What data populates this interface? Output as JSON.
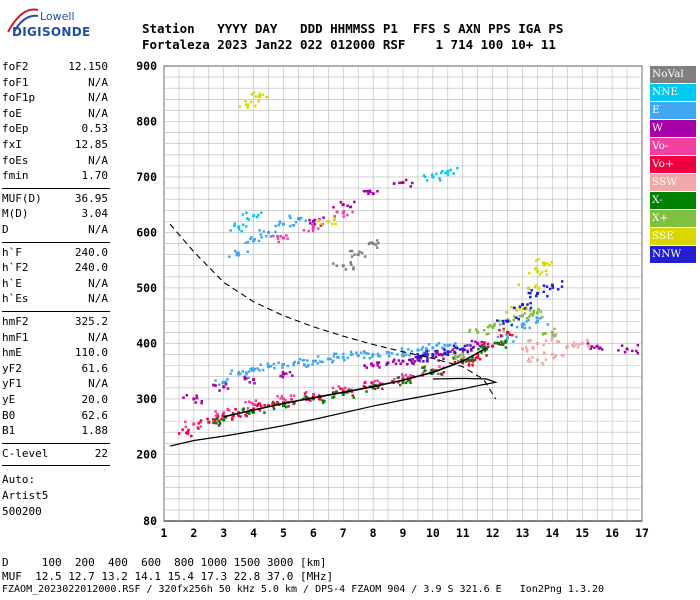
{
  "logo": {
    "line1": "Lowell",
    "line2": "DIGISONDE"
  },
  "header": {
    "line1": "Station   YYYY DAY   DDD HHMMSS P1  FFS S AXN PPS IGA PS",
    "line2": "Fortaleza 2023 Jan22 022 012000 RSF    1 714 100 10+ 11"
  },
  "params": {
    "group1": [
      {
        "k": "foF2",
        "v": "12.150"
      },
      {
        "k": "foF1",
        "v": "N/A"
      },
      {
        "k": "foF1p",
        "v": "N/A"
      },
      {
        "k": "foE",
        "v": "N/A"
      },
      {
        "k": "foEp",
        "v": "0.53"
      },
      {
        "k": "fxI",
        "v": "12.85"
      },
      {
        "k": "foEs",
        "v": "N/A"
      },
      {
        "k": "fmin",
        "v": "1.70"
      }
    ],
    "group2": [
      {
        "k": "MUF(D)",
        "v": "36.95"
      },
      {
        "k": "M(D)",
        "v": "3.04"
      },
      {
        "k": "D",
        "v": "N/A"
      }
    ],
    "group3": [
      {
        "k": "h`F",
        "v": "240.0"
      },
      {
        "k": "h`F2",
        "v": "240.0"
      },
      {
        "k": "h`E",
        "v": "N/A"
      },
      {
        "k": "h`Es",
        "v": "N/A"
      }
    ],
    "group4": [
      {
        "k": "hmF2",
        "v": "325.2"
      },
      {
        "k": "hmF1",
        "v": "N/A"
      },
      {
        "k": "hmE",
        "v": "110.0"
      },
      {
        "k": "yF2",
        "v": "61.6"
      },
      {
        "k": "yF1",
        "v": "N/A"
      },
      {
        "k": "yE",
        "v": "20.0"
      },
      {
        "k": "B0",
        "v": "62.6"
      },
      {
        "k": "B1",
        "v": "1.88"
      }
    ],
    "clevel": {
      "k": "C-level",
      "v": "22"
    },
    "auto": [
      "Auto:",
      "Artist5",
      "500200"
    ]
  },
  "legend": [
    {
      "label": "NoVal",
      "color": "#808080"
    },
    {
      "label": "NNE",
      "color": "#00c8f0"
    },
    {
      "label": "E",
      "color": "#40a8f0"
    },
    {
      "label": "W",
      "color": "#a800a8"
    },
    {
      "label": "Vo-",
      "color": "#f040a0"
    },
    {
      "label": "Vo+",
      "color": "#f00040"
    },
    {
      "label": "SSW",
      "color": "#f0a8a8"
    },
    {
      "label": "X-",
      "color": "#008000"
    },
    {
      "label": "X+",
      "color": "#80c040"
    },
    {
      "label": "SSE",
      "color": "#d8d800"
    },
    {
      "label": "NNW",
      "color": "#2020d0"
    }
  ],
  "footer": {
    "line1": "D     100  200  400  600  800 1000 1500 3000 [km]",
    "line2": "MUF  12.5 12.7 13.2 14.1 15.4 17.3 22.8 37.0 [MHz]",
    "line3": "FZAOM_2023022012000.RSF / 320fx256h 50 kHz 5.0 km / DPS-4 FZAOM 904 / 3.9 S 321.6 E   Ion2Png 1.3.20"
  },
  "chart_data": {
    "type": "scatter",
    "title": "",
    "xlabel": "",
    "ylabel": "",
    "xlim": [
      1,
      17
    ],
    "ylim": [
      80,
      900
    ],
    "x_ticks": [
      1,
      2,
      3,
      4,
      5,
      6,
      7,
      8,
      9,
      10,
      11,
      12,
      13,
      14,
      15,
      16,
      17
    ],
    "y_ticks": [
      80,
      200,
      300,
      400,
      500,
      600,
      700,
      800,
      900
    ],
    "grid": true,
    "legend_position": "right",
    "series": [
      {
        "name": "E",
        "color": "#40a8f0",
        "points": [
          [
            3.0,
            330
          ],
          [
            3.5,
            345
          ],
          [
            4.0,
            352
          ],
          [
            4.5,
            358
          ],
          [
            5.0,
            362
          ],
          [
            5.5,
            365
          ],
          [
            6.0,
            368
          ],
          [
            6.5,
            372
          ],
          [
            7.0,
            375
          ],
          [
            7.5,
            378
          ],
          [
            8.0,
            380
          ],
          [
            8.5,
            383
          ],
          [
            9.0,
            385
          ],
          [
            9.5,
            388
          ],
          [
            10.0,
            392
          ],
          [
            10.5,
            396
          ],
          [
            3.5,
            560
          ],
          [
            4.0,
            585
          ],
          [
            4.5,
            600
          ],
          [
            5.0,
            615
          ],
          [
            5.5,
            625
          ],
          [
            12.5,
            410
          ],
          [
            13.0,
            430
          ],
          [
            13.5,
            440
          ]
        ]
      },
      {
        "name": "W",
        "color": "#a800a8",
        "points": [
          [
            2.0,
            300
          ],
          [
            3.0,
            322
          ],
          [
            4.0,
            335
          ],
          [
            5.0,
            345
          ],
          [
            8.0,
            360
          ],
          [
            8.5,
            365
          ],
          [
            9.0,
            368
          ],
          [
            9.5,
            370
          ],
          [
            10.0,
            375
          ],
          [
            10.5,
            380
          ],
          [
            11.0,
            390
          ],
          [
            11.5,
            400
          ],
          [
            6.0,
            620
          ],
          [
            7.0,
            650
          ],
          [
            8.0,
            670
          ],
          [
            9.0,
            690
          ],
          [
            15.5,
            395
          ],
          [
            16.5,
            390
          ]
        ]
      },
      {
        "name": "Vo-",
        "color": "#f040a0",
        "points": [
          [
            2.0,
            255
          ],
          [
            3.0,
            275
          ],
          [
            4.0,
            290
          ],
          [
            5.0,
            300
          ],
          [
            6.0,
            308
          ],
          [
            7.0,
            318
          ],
          [
            8.0,
            328
          ],
          [
            9.0,
            340
          ],
          [
            10.0,
            352
          ],
          [
            11.0,
            370
          ],
          [
            5.0,
            590
          ],
          [
            6.0,
            610
          ],
          [
            7.0,
            635
          ]
        ]
      },
      {
        "name": "Vo+",
        "color": "#f00040",
        "points": [
          [
            1.8,
            240
          ],
          [
            2.5,
            258
          ],
          [
            3.0,
            268
          ],
          [
            3.5,
            275
          ],
          [
            4.0,
            282
          ],
          [
            4.5,
            288
          ],
          [
            5.0,
            293
          ],
          [
            6.0,
            303
          ],
          [
            7.0,
            313
          ],
          [
            8.0,
            323
          ],
          [
            9.0,
            335
          ],
          [
            10.0,
            348
          ],
          [
            11.0,
            365
          ],
          [
            11.5,
            375
          ],
          [
            12.0,
            395
          ],
          [
            12.5,
            420
          ]
        ]
      },
      {
        "name": "SSW",
        "color": "#f0a8a8",
        "points": [
          [
            13.0,
            390
          ],
          [
            13.5,
            400
          ],
          [
            14.0,
            410
          ],
          [
            14.5,
            395
          ],
          [
            15.0,
            400
          ],
          [
            14.0,
            380
          ],
          [
            13.5,
            370
          ]
        ]
      },
      {
        "name": "X-",
        "color": "#008000",
        "points": [
          [
            3.0,
            262
          ],
          [
            4.0,
            276
          ],
          [
            5.0,
            288
          ],
          [
            6.0,
            300
          ],
          [
            7.0,
            308
          ],
          [
            8.0,
            320
          ],
          [
            9.0,
            332
          ],
          [
            10.0,
            350
          ],
          [
            11.0,
            368
          ],
          [
            11.8,
            390
          ],
          [
            12.2,
            400
          ]
        ]
      },
      {
        "name": "X+",
        "color": "#80c040",
        "points": [
          [
            11.0,
            380
          ],
          [
            11.5,
            420
          ],
          [
            12.0,
            430
          ],
          [
            12.5,
            440
          ],
          [
            13.0,
            450
          ],
          [
            13.5,
            455
          ],
          [
            14.0,
            420
          ]
        ]
      },
      {
        "name": "SSE",
        "color": "#d8d800",
        "points": [
          [
            3.8,
            830
          ],
          [
            4.2,
            845
          ],
          [
            12.8,
            460
          ],
          [
            13.2,
            500
          ],
          [
            13.5,
            530
          ],
          [
            13.7,
            545
          ],
          [
            6.5,
            620
          ]
        ]
      },
      {
        "name": "NNW",
        "color": "#2020d0",
        "points": [
          [
            9.5,
            375
          ],
          [
            10.0,
            380
          ],
          [
            10.5,
            385
          ],
          [
            11.0,
            390
          ],
          [
            12.5,
            440
          ],
          [
            13.0,
            470
          ],
          [
            13.5,
            490
          ],
          [
            14.0,
            505
          ]
        ]
      },
      {
        "name": "NNE",
        "color": "#00c8f0",
        "points": [
          [
            3.5,
            610
          ],
          [
            4.0,
            630
          ],
          [
            10.0,
            700
          ],
          [
            10.5,
            710
          ]
        ]
      },
      {
        "name": "NoVal",
        "color": "#808080",
        "points": [
          [
            7.0,
            540
          ],
          [
            7.5,
            560
          ],
          [
            8.0,
            580
          ]
        ]
      }
    ],
    "curves": {
      "mufd_dashed": [
        [
          1.2,
          615
        ],
        [
          2.0,
          565
        ],
        [
          3.0,
          510
        ],
        [
          4.0,
          475
        ],
        [
          5.0,
          450
        ],
        [
          6.0,
          430
        ],
        [
          7.0,
          413
        ],
        [
          8.0,
          398
        ],
        [
          9.0,
          385
        ],
        [
          10.0,
          373
        ],
        [
          11.0,
          358
        ],
        [
          11.7,
          335
        ],
        [
          12.1,
          300
        ]
      ],
      "profile_solid": [
        [
          1.2,
          215
        ],
        [
          2.0,
          225
        ],
        [
          3.0,
          233
        ],
        [
          4.0,
          242
        ],
        [
          5.0,
          252
        ],
        [
          6.0,
          263
        ],
        [
          7.0,
          275
        ],
        [
          8.0,
          287
        ],
        [
          9.0,
          298
        ],
        [
          10.0,
          308
        ],
        [
          11.0,
          318
        ],
        [
          11.6,
          325
        ],
        [
          12.1,
          330
        ],
        [
          11.8,
          336
        ],
        [
          11.0,
          337
        ],
        [
          10.0,
          336
        ]
      ],
      "virtual_trace": [
        [
          3.0,
          268
        ],
        [
          4.0,
          280
        ],
        [
          5.0,
          292
        ],
        [
          6.0,
          302
        ],
        [
          7.0,
          312
        ],
        [
          8.0,
          322
        ],
        [
          9.0,
          334
        ],
        [
          10.0,
          348
        ],
        [
          11.0,
          368
        ],
        [
          11.8,
          392
        ]
      ]
    }
  }
}
